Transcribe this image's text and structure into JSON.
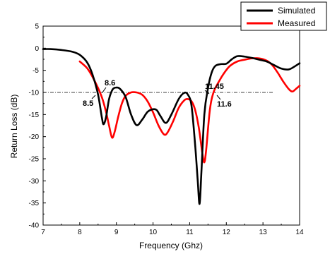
{
  "chart_data": {
    "type": "line",
    "xlabel": "Frequency (Ghz)",
    "ylabel": "Return Loss (dB)",
    "xlim": [
      7,
      14
    ],
    "ylim": [
      -40,
      5
    ],
    "xticks": [
      "7",
      "8",
      "9",
      "10",
      "11",
      "12",
      "13",
      "14"
    ],
    "yticks": [
      "5",
      "0",
      "-5",
      "-10",
      "-15",
      "-20",
      "-25",
      "-30",
      "-35",
      "-40"
    ],
    "grid": false,
    "legend_position": "top-right",
    "reference_line": {
      "y": -10,
      "style": "dash-dot"
    },
    "annotations": [
      {
        "text": "8.6",
        "x": 8.6,
        "y": -10
      },
      {
        "text": "8.5",
        "x": 8.5,
        "y": -10
      },
      {
        "text": "11.45",
        "x": 11.45,
        "y": -10
      },
      {
        "text": "11.6",
        "x": 11.6,
        "y": -10
      }
    ],
    "series": [
      {
        "name": "Simulated",
        "color": "#000000",
        "points": [
          [
            7.0,
            -0.2
          ],
          [
            7.2,
            -0.2
          ],
          [
            7.5,
            -0.4
          ],
          [
            7.8,
            -0.8
          ],
          [
            8.0,
            -1.5
          ],
          [
            8.2,
            -3.2
          ],
          [
            8.35,
            -6.0
          ],
          [
            8.5,
            -10.5
          ],
          [
            8.6,
            -15.5
          ],
          [
            8.65,
            -17.2
          ],
          [
            8.72,
            -15.5
          ],
          [
            8.8,
            -11.5
          ],
          [
            8.9,
            -9.3
          ],
          [
            9.0,
            -8.9
          ],
          [
            9.1,
            -9.2
          ],
          [
            9.25,
            -11.0
          ],
          [
            9.4,
            -15.0
          ],
          [
            9.55,
            -17.4
          ],
          [
            9.7,
            -16.2
          ],
          [
            9.85,
            -14.4
          ],
          [
            10.0,
            -13.8
          ],
          [
            10.1,
            -14.0
          ],
          [
            10.2,
            -15.3
          ],
          [
            10.35,
            -16.9
          ],
          [
            10.5,
            -15.0
          ],
          [
            10.7,
            -11.5
          ],
          [
            10.85,
            -10.1
          ],
          [
            10.95,
            -10.5
          ],
          [
            11.05,
            -13.0
          ],
          [
            11.15,
            -22.0
          ],
          [
            11.22,
            -30.0
          ],
          [
            11.27,
            -35.2
          ],
          [
            11.32,
            -28.0
          ],
          [
            11.4,
            -15.0
          ],
          [
            11.5,
            -9.0
          ],
          [
            11.6,
            -5.5
          ],
          [
            11.7,
            -4.0
          ],
          [
            11.85,
            -3.6
          ],
          [
            12.0,
            -3.5
          ],
          [
            12.15,
            -2.5
          ],
          [
            12.3,
            -1.8
          ],
          [
            12.5,
            -1.9
          ],
          [
            12.7,
            -2.2
          ],
          [
            12.9,
            -2.6
          ],
          [
            13.1,
            -3.0
          ],
          [
            13.3,
            -3.8
          ],
          [
            13.5,
            -4.6
          ],
          [
            13.7,
            -4.8
          ],
          [
            13.85,
            -4.2
          ],
          [
            14.0,
            -3.4
          ]
        ]
      },
      {
        "name": "Measured",
        "color": "#ff0000",
        "points": [
          [
            8.0,
            -3.0
          ],
          [
            8.2,
            -4.5
          ],
          [
            8.35,
            -6.5
          ],
          [
            8.5,
            -9.0
          ],
          [
            8.62,
            -11.5
          ],
          [
            8.72,
            -14.5
          ],
          [
            8.8,
            -17.5
          ],
          [
            8.88,
            -20.2
          ],
          [
            8.95,
            -19.0
          ],
          [
            9.05,
            -15.5
          ],
          [
            9.15,
            -12.5
          ],
          [
            9.25,
            -10.8
          ],
          [
            9.4,
            -10.0
          ],
          [
            9.55,
            -10.0
          ],
          [
            9.7,
            -10.5
          ],
          [
            9.85,
            -12.0
          ],
          [
            10.0,
            -14.5
          ],
          [
            10.15,
            -17.5
          ],
          [
            10.3,
            -19.5
          ],
          [
            10.4,
            -19.0
          ],
          [
            10.55,
            -16.5
          ],
          [
            10.7,
            -13.5
          ],
          [
            10.85,
            -11.8
          ],
          [
            10.95,
            -11.5
          ],
          [
            11.05,
            -12.0
          ],
          [
            11.15,
            -14.0
          ],
          [
            11.25,
            -18.0
          ],
          [
            11.35,
            -24.0
          ],
          [
            11.4,
            -25.8
          ],
          [
            11.45,
            -23.0
          ],
          [
            11.55,
            -14.0
          ],
          [
            11.65,
            -10.0
          ],
          [
            11.8,
            -7.5
          ],
          [
            11.95,
            -5.5
          ],
          [
            12.1,
            -4.0
          ],
          [
            12.3,
            -3.0
          ],
          [
            12.5,
            -2.6
          ],
          [
            12.7,
            -2.3
          ],
          [
            12.9,
            -2.3
          ],
          [
            13.1,
            -2.8
          ],
          [
            13.25,
            -3.8
          ],
          [
            13.4,
            -5.5
          ],
          [
            13.55,
            -7.5
          ],
          [
            13.7,
            -9.2
          ],
          [
            13.8,
            -9.8
          ],
          [
            13.9,
            -9.2
          ],
          [
            14.0,
            -8.5
          ]
        ]
      }
    ]
  }
}
